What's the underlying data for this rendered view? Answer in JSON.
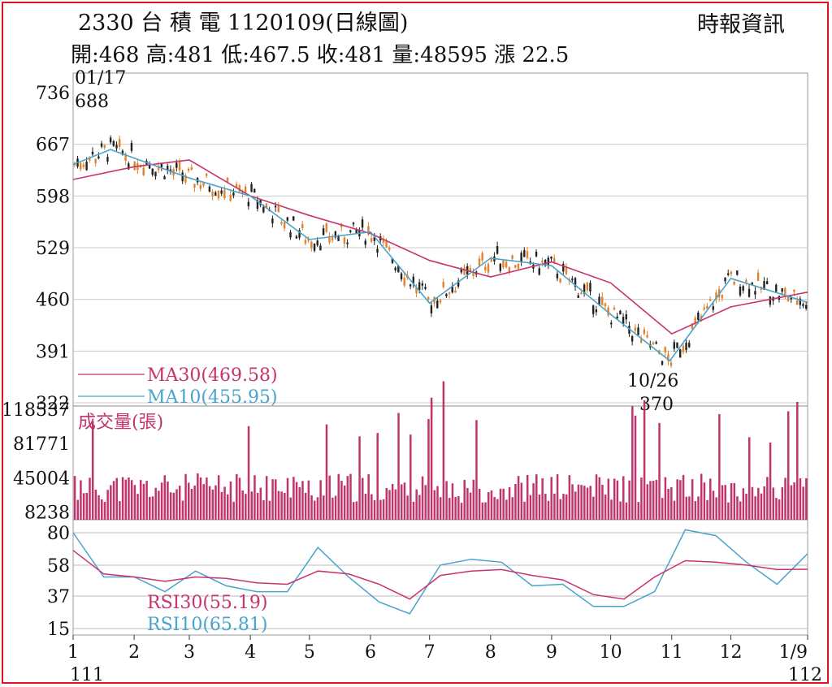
{
  "header": {
    "title": "2330 台 積 電 1120109(日線圖)",
    "source": "時報資訊",
    "ohlc": "開:468 高:481 低:467.5 收:481 量:48595 漲 22.5"
  },
  "colors": {
    "frame": "#e0141e",
    "ma30": "#c8336e",
    "ma10": "#4aa3c9",
    "volume": "#c2336b",
    "up": "#e2822c",
    "down": "#222222",
    "grid": "#cccccc"
  },
  "chart_data": [
    {
      "type": "candlestick",
      "ylim": [
        322,
        736
      ],
      "yticks": [
        "736",
        "667",
        "598",
        "529",
        "460",
        "391",
        "322"
      ],
      "annotations": [
        {
          "label_top": "01/17",
          "label_bottom": "688",
          "x": "01/17",
          "y": 688
        },
        {
          "label_top": "10/26",
          "label_bottom": "370",
          "x": "10/26",
          "y": 370
        }
      ],
      "legend": [
        {
          "label": "MA30(469.58)",
          "color": "#c8336e"
        },
        {
          "label": "MA10(455.95)",
          "color": "#4aa3c9"
        }
      ],
      "ma30": [
        {
          "x": "1/1",
          "y": 620
        },
        {
          "x": "2/1",
          "y": 637
        },
        {
          "x": "3/1",
          "y": 646
        },
        {
          "x": "4/1",
          "y": 598
        },
        {
          "x": "5/1",
          "y": 572
        },
        {
          "x": "6/1",
          "y": 548
        },
        {
          "x": "7/1",
          "y": 512
        },
        {
          "x": "8/1",
          "y": 490
        },
        {
          "x": "9/1",
          "y": 510
        },
        {
          "x": "10/1",
          "y": 482
        },
        {
          "x": "11/1",
          "y": 414
        },
        {
          "x": "12/1",
          "y": 450
        },
        {
          "x": "1/9",
          "y": 469.58
        }
      ],
      "ma10": [
        {
          "x": "1/1",
          "y": 640
        },
        {
          "x": "1/20",
          "y": 660
        },
        {
          "x": "3/1",
          "y": 622
        },
        {
          "x": "4/1",
          "y": 598
        },
        {
          "x": "5/1",
          "y": 540
        },
        {
          "x": "6/1",
          "y": 550
        },
        {
          "x": "7/1",
          "y": 455
        },
        {
          "x": "8/1",
          "y": 515
        },
        {
          "x": "9/1",
          "y": 505
        },
        {
          "x": "10/1",
          "y": 440
        },
        {
          "x": "10/31",
          "y": 378
        },
        {
          "x": "12/1",
          "y": 488
        },
        {
          "x": "1/9",
          "y": 455.95
        }
      ]
    },
    {
      "type": "bar",
      "title": "成交量(張)",
      "ylim": [
        0,
        118537
      ],
      "yticks": [
        "118537",
        "81771",
        "45004",
        "8238"
      ]
    },
    {
      "type": "line",
      "ylim": [
        15,
        80
      ],
      "yticks": [
        "80",
        "58",
        "37",
        "15"
      ],
      "legend": [
        {
          "label": "RSI30(55.19)",
          "color": "#c8336e"
        },
        {
          "label": "RSI10(65.81)",
          "color": "#4aa3c9"
        }
      ],
      "rsi30": [
        68,
        52,
        50,
        47,
        50,
        49,
        46,
        45,
        54,
        52,
        45,
        35,
        51,
        54,
        55,
        51,
        48,
        38,
        35,
        50,
        61,
        60,
        58,
        55,
        55.19
      ],
      "rsi10": [
        80,
        50,
        50,
        40,
        54,
        44,
        40,
        40,
        70,
        50,
        33,
        25,
        58,
        62,
        60,
        44,
        45,
        30,
        30,
        40,
        82,
        78,
        60,
        45,
        65.81
      ]
    }
  ],
  "x_axis": {
    "months": [
      "1",
      "2",
      "3",
      "4",
      "5",
      "6",
      "7",
      "8",
      "9",
      "10",
      "11",
      "12",
      "1/9"
    ],
    "year_start": "111",
    "year_end": "112"
  }
}
